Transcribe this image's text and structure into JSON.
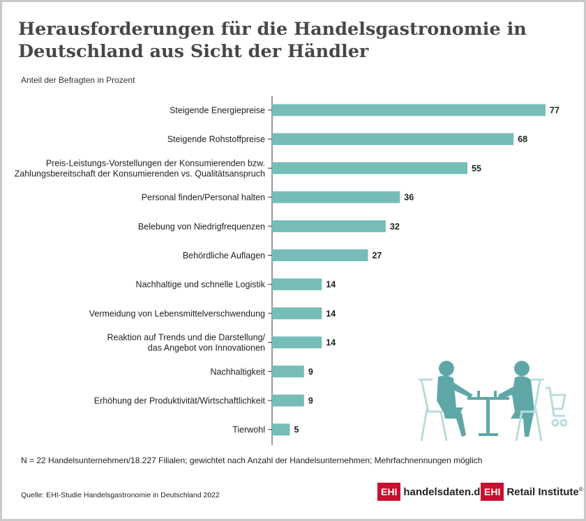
{
  "title": "Herausforderungen für die Handelsgastronomie in Deutschland aus Sicht der Händler",
  "subtitle": "Anteil der Befragten in Prozent",
  "note": "N = 22 Handelsunternehmen/18.227 Filialen; gewichtet nach Anzahl der Handelsunternehmen; Mehrfachnennungen möglich",
  "source": "Quelle: EHI-Studie Handelsgastronomie in Deutschland 2022",
  "logos": {
    "left_box": "EHI",
    "left_text": "handelsdaten.de",
    "right_box": "EHI",
    "right_text": "Retail Institute",
    "right_reg": "®"
  },
  "illustration": "people-at-cafe-table-with-shopping-cart-icon",
  "colors": {
    "bar": "#76bdb8",
    "illustration": "#5fa7a7",
    "logo_red": "#c8102e"
  },
  "chart_data": {
    "type": "bar",
    "orientation": "horizontal",
    "categories": [
      [
        "Steigende Energiepreise"
      ],
      [
        "Steigende Rohstoffpreise"
      ],
      [
        "Preis-Leistungs-Vorstellungen der Konsumierenden bzw.",
        "Zahlungsbereitschaft der Konsumierenden vs. Qualitätsanspruch"
      ],
      [
        "Personal finden/Personal halten"
      ],
      [
        "Belebung von Niedrigfrequenzen"
      ],
      [
        "Behördliche Auflagen"
      ],
      [
        "Nachhaltige und schnelle Logistik"
      ],
      [
        "Vermeidung von Lebensmittelverschwendung"
      ],
      [
        "Reaktion auf Trends und die Darstellung/",
        "das Angebot von Innovationen"
      ],
      [
        "Nachhaltigkeit"
      ],
      [
        "Erhöhung der Produktivität/Wirtschaftlichkeit"
      ],
      [
        "Tierwohl"
      ]
    ],
    "values": [
      77,
      68,
      55,
      36,
      32,
      27,
      14,
      14,
      14,
      9,
      9,
      5
    ],
    "xlim": [
      0,
      77
    ],
    "grid": false,
    "legend": "none"
  }
}
